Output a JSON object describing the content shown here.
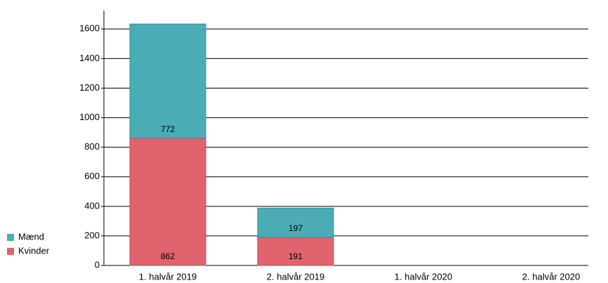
{
  "chart_data": {
    "type": "bar",
    "stacked": true,
    "categories": [
      "1. halvår 2019",
      "2. halvår 2019",
      "1. halvår 2020",
      "2. halvår 2020"
    ],
    "series": [
      {
        "name": "Kvinder",
        "color": "#e0636e",
        "values": [
          862,
          191,
          0,
          0
        ]
      },
      {
        "name": "Mænd",
        "color": "#4bacb6",
        "values": [
          772,
          197,
          0,
          0
        ]
      }
    ],
    "ylim": [
      0,
      1725
    ],
    "yticks": [
      0,
      200,
      400,
      600,
      800,
      1000,
      1200,
      1400,
      1600
    ],
    "grid": true
  }
}
